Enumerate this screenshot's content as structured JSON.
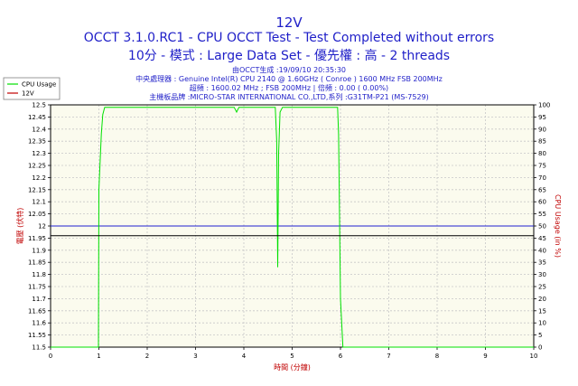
{
  "header": {
    "line1": "12V",
    "line2": "OCCT 3.1.0.RC1 - CPU OCCT Test - Test Completed without errors",
    "line3": "10分 - 模式 : Large Data Set - 優先權 : 高 - 2 threads"
  },
  "info": {
    "generated": "由OCCT生成 :19/09/10 20:35:30",
    "cpu": "中央處理器 : Genuine Intel(R) CPU 2140 @ 1.60GHz ( Conroe ) 1600 MHz FSB 200MHz",
    "freq": "超頻 : 1600.02 MHz ; FSB 200MHz | 倍頻 : 0.00 ( 0.00%)",
    "board": "主機板品牌 :MICRO-STAR INTERNATIONAL CO.,LTD,系列 :G31TM-P21 (MS-7529)"
  },
  "colors": {
    "title": "#1f1fc8",
    "cpu_series": "#00e000",
    "v12_series": "#000000",
    "blue_line": "#2020d0",
    "axis_label": "#c00000",
    "grid": "#c8c8c8",
    "plot_bg": "#fbfbee"
  },
  "chart_data": {
    "type": "line",
    "xlabel": "時間 (分鐘)",
    "ylabel": "電壓 (伏特)",
    "ylabel_right": "CPU Usage (in %)",
    "xlim": [
      0,
      10
    ],
    "ylim": [
      11.5,
      12.5
    ],
    "ylim_right": [
      0,
      100
    ],
    "x_ticks": [
      0,
      1,
      2,
      3,
      4,
      5,
      6,
      7,
      8,
      9,
      10
    ],
    "y_ticks": [
      11.5,
      11.55,
      11.6,
      11.65,
      11.7,
      11.75,
      11.8,
      11.85,
      11.9,
      11.95,
      12,
      12.05,
      12.1,
      12.15,
      12.2,
      12.25,
      12.3,
      12.35,
      12.4,
      12.45,
      12.5
    ],
    "y_ticks_right": [
      0,
      5,
      10,
      15,
      20,
      25,
      30,
      35,
      40,
      45,
      50,
      55,
      60,
      65,
      70,
      75,
      80,
      85,
      90,
      95,
      100
    ],
    "legend": [
      "CPU Usage",
      "12V"
    ],
    "legend_position": "top-left",
    "grid": true,
    "reference_line": {
      "axis": "left",
      "value": 12.0
    },
    "series": [
      {
        "name": "CPU Usage",
        "axis": "right",
        "x": [
          0,
          0.99,
          1.0,
          1.05,
          1.08,
          1.12,
          1.2,
          1.5,
          2.0,
          3.0,
          3.8,
          3.85,
          3.9,
          4.5,
          4.65,
          4.68,
          4.7,
          4.72,
          4.75,
          4.8,
          5.0,
          5.5,
          5.94,
          5.96,
          6.0,
          6.05,
          10
        ],
        "y": [
          0,
          0,
          65,
          88,
          96,
          99,
          99,
          99,
          99,
          99,
          99,
          97,
          99,
          99,
          99,
          85,
          33,
          80,
          97,
          99,
          99,
          99,
          99,
          88,
          20,
          0,
          0
        ]
      },
      {
        "name": "12V",
        "axis": "left",
        "x": [
          0,
          10
        ],
        "y": [
          11.96,
          11.96
        ]
      }
    ]
  }
}
